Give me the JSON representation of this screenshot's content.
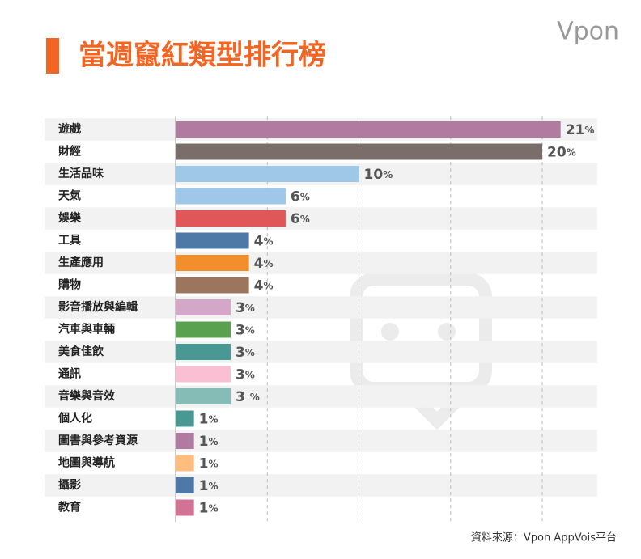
{
  "chart_data": {
    "type": "bar",
    "orientation": "horizontal",
    "title": "當週竄紅類型排行榜",
    "logo": "Vpon",
    "source": "資料來源：Vpon AppVois平台",
    "categories": [
      "遊戲",
      "財經",
      "生活品味",
      "天氣",
      "娛樂",
      "工具",
      "生產應用",
      "購物",
      "影音播放與編輯",
      "汽車與車輛",
      "美食佳飲",
      "通訊",
      "音樂與音效",
      "個人化",
      "圖書與參考資源",
      "地圖與導航",
      "攝影",
      "教育"
    ],
    "values": [
      21,
      20,
      10,
      6,
      6,
      4,
      4,
      4,
      3,
      3,
      3,
      3,
      3,
      1,
      1,
      1,
      1,
      1
    ],
    "value_labels": [
      "21%",
      "20%",
      "10%",
      "6%",
      "6%",
      "4%",
      "4%",
      "4%",
      "3%",
      "3%",
      "3%",
      "3%",
      "3 %",
      "1%",
      "1%",
      "1%",
      "1%",
      "1%"
    ],
    "colors": [
      "#b07aa1",
      "#7a6e6a",
      "#9fc8e8",
      "#9fc8e8",
      "#e15759",
      "#4e79a7",
      "#f28e2b",
      "#9c755f",
      "#d4a6c8",
      "#59a14f",
      "#499894",
      "#fabfd2",
      "#86bcb6",
      "#499894",
      "#b07aa1",
      "#ffbe7d",
      "#4e79a7",
      "#d37295"
    ],
    "xlim": [
      0,
      23
    ],
    "xticks": [
      5,
      10,
      15,
      20
    ],
    "grid": true
  }
}
